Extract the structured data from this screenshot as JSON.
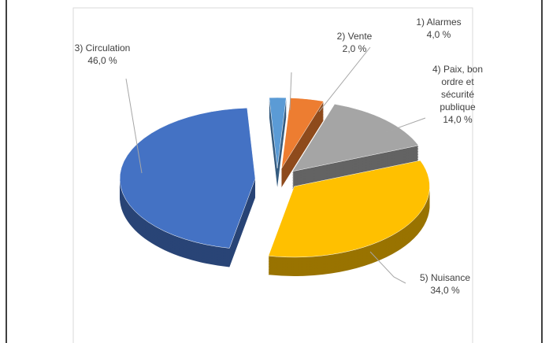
{
  "chart_data": {
    "type": "pie",
    "categories": [
      "2) Vente",
      "1) Alarmes",
      "4) Paix, bon ordre et sécurité publique",
      "5) Nuisance",
      "3) Circulation"
    ],
    "values": [
      2,
      4,
      14,
      34,
      46
    ],
    "value_labels": [
      "2,0 %",
      "4,0 %",
      "14,0 %",
      "34,0 %",
      "46,0 %"
    ],
    "colors": [
      "#5b9bd5",
      "#ed7d31",
      "#a5a5a5",
      "#ffc000",
      "#4472c4"
    ]
  }
}
